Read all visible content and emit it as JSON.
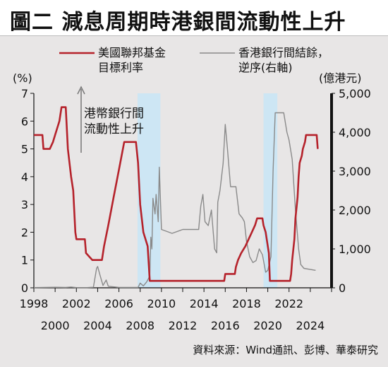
{
  "title": "圖二  減息周期時港銀間流動性上升",
  "source": "資料來源：Wind通訊、彭博、華泰研究",
  "annotation": [
    "港幣銀行間",
    "流動性上升"
  ],
  "colors": {
    "fed_line": "#b5222b",
    "hibor_line": "#8a8a8a",
    "shade": "#cde6f4",
    "right_axis": "#111111"
  },
  "chart_data": {
    "type": "line",
    "legend_position": "top",
    "grid": false,
    "x_range": [
      1998,
      2026
    ],
    "x_ticks_top": [
      "1998",
      "2002",
      "2006",
      "2010",
      "2014",
      "2018",
      "2022"
    ],
    "x_ticks_top_values": [
      1998,
      2002,
      2006,
      2010,
      2014,
      2018,
      2022
    ],
    "x_ticks_bottom": [
      "2000",
      "2004",
      "2008",
      "2012",
      "2016",
      "2020",
      "2024"
    ],
    "x_ticks_bottom_values": [
      2000,
      2004,
      2008,
      2012,
      2016,
      2020,
      2024
    ],
    "y_left": {
      "label": "(%)",
      "range": [
        0,
        7
      ],
      "ticks": [
        "0",
        "1",
        "2",
        "3",
        "4",
        "5",
        "6",
        "7"
      ],
      "tick_values": [
        0,
        1,
        2,
        3,
        4,
        5,
        6,
        7
      ]
    },
    "y_right": {
      "label": "(億港元)",
      "range": [
        0,
        5000
      ],
      "ticks": [
        "0",
        "1,000",
        "2,000",
        "3,000",
        "4,000",
        "5,000"
      ],
      "tick_values": [
        0,
        1000,
        2000,
        3000,
        4000,
        5000
      ]
    },
    "shaded_periods": [
      [
        2007.75,
        2009.9
      ],
      [
        2019.6,
        2020.9
      ]
    ],
    "series": [
      {
        "name": "美國聯邦基金目標利率",
        "name_lines": [
          "美國聯邦基金",
          "目標利率"
        ],
        "axis": "left",
        "points": [
          [
            1998.0,
            5.5
          ],
          [
            1998.8,
            5.5
          ],
          [
            1998.9,
            5.0
          ],
          [
            1999.5,
            5.0
          ],
          [
            1999.8,
            5.25
          ],
          [
            2000.0,
            5.5
          ],
          [
            2000.4,
            6.0
          ],
          [
            2000.6,
            6.5
          ],
          [
            2001.0,
            6.5
          ],
          [
            2001.2,
            5.0
          ],
          [
            2001.5,
            4.0
          ],
          [
            2001.7,
            3.5
          ],
          [
            2001.9,
            2.0
          ],
          [
            2002.0,
            1.75
          ],
          [
            2002.8,
            1.75
          ],
          [
            2002.9,
            1.25
          ],
          [
            2003.5,
            1.0
          ],
          [
            2004.4,
            1.0
          ],
          [
            2004.6,
            1.5
          ],
          [
            2005.0,
            2.25
          ],
          [
            2005.5,
            3.25
          ],
          [
            2006.0,
            4.25
          ],
          [
            2006.5,
            5.25
          ],
          [
            2007.6,
            5.25
          ],
          [
            2007.8,
            4.5
          ],
          [
            2008.0,
            3.0
          ],
          [
            2008.3,
            2.0
          ],
          [
            2008.7,
            1.5
          ],
          [
            2008.9,
            0.25
          ],
          [
            2015.9,
            0.25
          ],
          [
            2016.0,
            0.5
          ],
          [
            2016.9,
            0.5
          ],
          [
            2017.0,
            0.75
          ],
          [
            2017.2,
            1.0
          ],
          [
            2017.5,
            1.25
          ],
          [
            2017.9,
            1.5
          ],
          [
            2018.2,
            1.75
          ],
          [
            2018.5,
            2.0
          ],
          [
            2018.8,
            2.25
          ],
          [
            2019.0,
            2.5
          ],
          [
            2019.5,
            2.5
          ],
          [
            2019.6,
            2.25
          ],
          [
            2019.8,
            2.0
          ],
          [
            2019.9,
            1.75
          ],
          [
            2020.1,
            1.25
          ],
          [
            2020.2,
            0.25
          ],
          [
            2022.1,
            0.25
          ],
          [
            2022.2,
            0.5
          ],
          [
            2022.3,
            1.0
          ],
          [
            2022.5,
            1.75
          ],
          [
            2022.6,
            2.5
          ],
          [
            2022.8,
            3.25
          ],
          [
            2022.9,
            4.0
          ],
          [
            2023.0,
            4.5
          ],
          [
            2023.2,
            4.75
          ],
          [
            2023.3,
            5.0
          ],
          [
            2023.5,
            5.25
          ],
          [
            2023.6,
            5.5
          ],
          [
            2024.6,
            5.5
          ],
          [
            2024.7,
            5.0
          ]
        ]
      },
      {
        "name": "香港銀行間結餘，逆序(右軸)",
        "name_lines": [
          "香港銀行間結餘，",
          "逆序(右軸)"
        ],
        "axis": "right",
        "points": [
          [
            1998.0,
            5
          ],
          [
            1999.0,
            10
          ],
          [
            2000.0,
            15
          ],
          [
            2001.0,
            10
          ],
          [
            2001.5,
            20
          ],
          [
            2002.0,
            5
          ],
          [
            2003.0,
            5
          ],
          [
            2003.6,
            15
          ],
          [
            2003.9,
            500
          ],
          [
            2004.0,
            550
          ],
          [
            2004.2,
            350
          ],
          [
            2004.5,
            60
          ],
          [
            2004.8,
            200
          ],
          [
            2005.0,
            40
          ],
          [
            2006.0,
            10
          ],
          [
            2007.0,
            10
          ],
          [
            2007.8,
            10
          ],
          [
            2008.0,
            120
          ],
          [
            2008.3,
            50
          ],
          [
            2008.6,
            150
          ],
          [
            2008.9,
            300
          ],
          [
            2009.0,
            1300
          ],
          [
            2009.1,
            1000
          ],
          [
            2009.2,
            2300
          ],
          [
            2009.4,
            1900
          ],
          [
            2009.5,
            2400
          ],
          [
            2009.7,
            1700
          ],
          [
            2009.8,
            3100
          ],
          [
            2010.0,
            1500
          ],
          [
            2011.0,
            1400
          ],
          [
            2012.0,
            1500
          ],
          [
            2013.0,
            1500
          ],
          [
            2013.5,
            1500
          ],
          [
            2013.7,
            2100
          ],
          [
            2013.9,
            2400
          ],
          [
            2014.1,
            1700
          ],
          [
            2014.4,
            1600
          ],
          [
            2014.7,
            2000
          ],
          [
            2015.0,
            1000
          ],
          [
            2015.2,
            900
          ],
          [
            2015.3,
            2200
          ],
          [
            2015.5,
            2500
          ],
          [
            2015.8,
            3200
          ],
          [
            2016.0,
            4200
          ],
          [
            2016.2,
            3600
          ],
          [
            2016.5,
            2600
          ],
          [
            2017.0,
            2600
          ],
          [
            2017.3,
            1900
          ],
          [
            2017.6,
            1800
          ],
          [
            2017.8,
            1700
          ],
          [
            2018.0,
            1200
          ],
          [
            2018.3,
            800
          ],
          [
            2018.6,
            650
          ],
          [
            2018.9,
            700
          ],
          [
            2019.2,
            1000
          ],
          [
            2019.5,
            850
          ],
          [
            2019.8,
            400
          ],
          [
            2020.0,
            450
          ],
          [
            2020.3,
            800
          ],
          [
            2020.5,
            3000
          ],
          [
            2020.7,
            4500
          ],
          [
            2021.5,
            4500
          ],
          [
            2021.8,
            4000
          ],
          [
            2022.0,
            3800
          ],
          [
            2022.3,
            3300
          ],
          [
            2022.6,
            2000
          ],
          [
            2022.9,
            1000
          ],
          [
            2023.1,
            600
          ],
          [
            2023.4,
            500
          ],
          [
            2024.5,
            450
          ]
        ]
      }
    ]
  }
}
